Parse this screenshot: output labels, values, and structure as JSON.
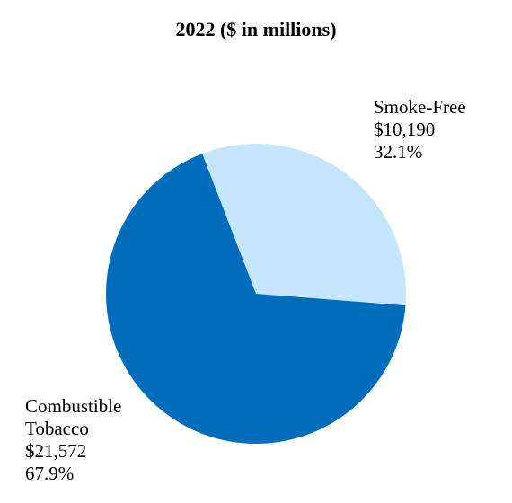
{
  "chart_data": {
    "type": "pie",
    "title": "2022 ($ in millions)",
    "slices": [
      {
        "name": "Smoke-Free",
        "label_lines": [
          "Smoke-Free",
          "$10,190",
          "32.1%"
        ],
        "value": 10190,
        "percent": 32.1,
        "color": "#c5e5fc"
      },
      {
        "name": "Combustible Tobacco",
        "label_lines": [
          "Combustible",
          "Tobacco",
          "$21,572",
          "67.9%"
        ],
        "value": 21572,
        "percent": 67.9,
        "color": "#006cbc"
      }
    ],
    "legend": "none"
  }
}
